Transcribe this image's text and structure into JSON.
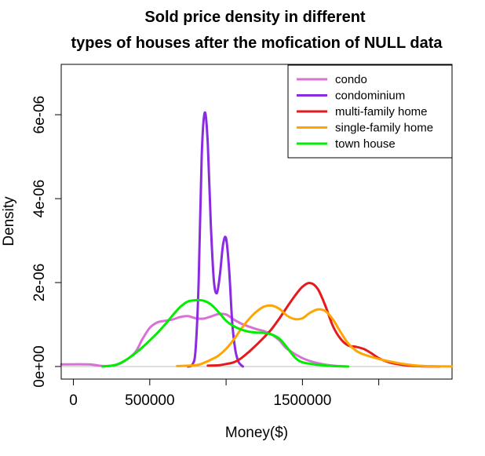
{
  "chart_data": {
    "type": "line",
    "title_lines": [
      "Sold price density in different",
      "types of houses after the mofication of NULL data"
    ],
    "xlabel": "Money($)",
    "ylabel": "Density",
    "xlim": [
      -80000,
      2480000
    ],
    "ylim": [
      -3e-07,
      7.2e-06
    ],
    "x_ticks": [
      0,
      500000,
      1000000,
      1500000,
      2000000
    ],
    "x_tick_labels": [
      "0",
      "500000",
      "",
      "1500000",
      ""
    ],
    "y_ticks": [
      0,
      2e-06,
      4e-06,
      6e-06
    ],
    "y_tick_labels": [
      "0e+00",
      "2e-06",
      "4e-06",
      "6e-06"
    ],
    "baseline": 0,
    "legend_position": "top-right",
    "series": [
      {
        "name": "condo",
        "color": "#DA70D6",
        "x": [
          -80000,
          100000,
          200000,
          300000,
          400000,
          450000,
          500000,
          550000,
          600000,
          650000,
          700000,
          750000,
          800000,
          850000,
          900000,
          950000,
          1000000,
          1050000,
          1100000,
          1150000,
          1200000,
          1250000,
          1300000,
          1350000,
          1400000,
          1500000,
          1600000,
          1700000,
          1800000
        ],
        "y": [
          5e-08,
          5e-08,
          1e-08,
          6e-08,
          3.2e-07,
          6.4e-07,
          9.2e-07,
          1.05e-06,
          1.09e-06,
          1.12e-06,
          1.18e-06,
          1.2e-06,
          1.15e-06,
          1.14e-06,
          1.19e-06,
          1.25e-06,
          1.24e-06,
          1.12e-06,
          1.02e-06,
          9.5e-07,
          8.9e-07,
          8.4e-07,
          7.6e-07,
          6.2e-07,
          4.2e-07,
          2e-07,
          8e-08,
          2e-08,
          0
        ]
      },
      {
        "name": "condominium",
        "color": "#8A2BE2",
        "x": [
          750000,
          780000,
          800000,
          820000,
          840000,
          860000,
          880000,
          900000,
          920000,
          940000,
          960000,
          980000,
          1000000,
          1020000,
          1040000,
          1060000,
          1080000,
          1100000,
          1110000
        ],
        "y": [
          0,
          5e-08,
          4e-07,
          2e-06,
          5e-06,
          6.05e-06,
          5.3e-06,
          3.4e-06,
          2.05e-06,
          1.75e-06,
          2.2e-06,
          2.9e-06,
          3.05e-06,
          2.3e-06,
          1.05e-06,
          4e-07,
          1.2e-07,
          3e-08,
          0
        ]
      },
      {
        "name": "multi-family home",
        "color": "#E41A1C",
        "x": [
          880000,
          950000,
          1000000,
          1050000,
          1100000,
          1150000,
          1200000,
          1250000,
          1300000,
          1350000,
          1400000,
          1450000,
          1500000,
          1550000,
          1600000,
          1650000,
          1700000,
          1750000,
          1800000,
          1850000,
          1900000,
          1950000,
          2000000,
          2050000,
          2100000,
          2200000,
          2300000,
          2400000
        ],
        "y": [
          2e-08,
          3e-08,
          6e-08,
          1e-07,
          2e-07,
          3.5e-07,
          5.2e-07,
          7e-07,
          9e-07,
          1.15e-06,
          1.42e-06,
          1.68e-06,
          1.9e-06,
          1.99e-06,
          1.85e-06,
          1.45e-06,
          9.6e-07,
          6.6e-07,
          5e-07,
          4.7e-07,
          4.2e-07,
          3.2e-07,
          2e-07,
          1.2e-07,
          7e-08,
          2e-08,
          5e-09,
          0
        ]
      },
      {
        "name": "single-family home",
        "color": "#FFA500",
        "x": [
          680000,
          800000,
          850000,
          900000,
          950000,
          1000000,
          1050000,
          1100000,
          1150000,
          1200000,
          1250000,
          1300000,
          1350000,
          1400000,
          1450000,
          1500000,
          1550000,
          1600000,
          1650000,
          1700000,
          1750000,
          1800000,
          1850000,
          1900000,
          2000000,
          2100000,
          2200000,
          2300000,
          2480000
        ],
        "y": [
          1e-08,
          3e-08,
          8e-08,
          1.6e-07,
          2.6e-07,
          4.2e-07,
          6.4e-07,
          9e-07,
          1.13e-06,
          1.31e-06,
          1.43e-06,
          1.45e-06,
          1.37e-06,
          1.21e-06,
          1.13e-06,
          1.15e-06,
          1.28e-06,
          1.36e-06,
          1.32e-06,
          1.12e-06,
          8.2e-07,
          5.5e-07,
          3.8e-07,
          2.9e-07,
          1.8e-07,
          1e-07,
          4e-08,
          1e-08,
          2e-09
        ]
      },
      {
        "name": "town house",
        "color": "#00EE00",
        "x": [
          190000,
          250000,
          300000,
          350000,
          400000,
          450000,
          500000,
          550000,
          600000,
          650000,
          700000,
          750000,
          800000,
          850000,
          900000,
          950000,
          1000000,
          1050000,
          1100000,
          1150000,
          1200000,
          1250000,
          1300000,
          1350000,
          1400000,
          1450000,
          1500000,
          1600000,
          1700000,
          1800000
        ],
        "y": [
          0,
          2e-08,
          7e-08,
          1.7e-07,
          3e-07,
          4.5e-07,
          6.2e-07,
          8e-07,
          1e-06,
          1.22e-06,
          1.42e-06,
          1.55e-06,
          1.58e-06,
          1.57e-06,
          1.48e-06,
          1.3e-06,
          1.09e-06,
          9.6e-07,
          8.8e-07,
          8.3e-07,
          8.1e-07,
          8e-07,
          7.6e-07,
          6.6e-07,
          4.5e-07,
          2.2e-07,
          1e-07,
          4e-08,
          1e-08,
          0
        ]
      }
    ]
  }
}
